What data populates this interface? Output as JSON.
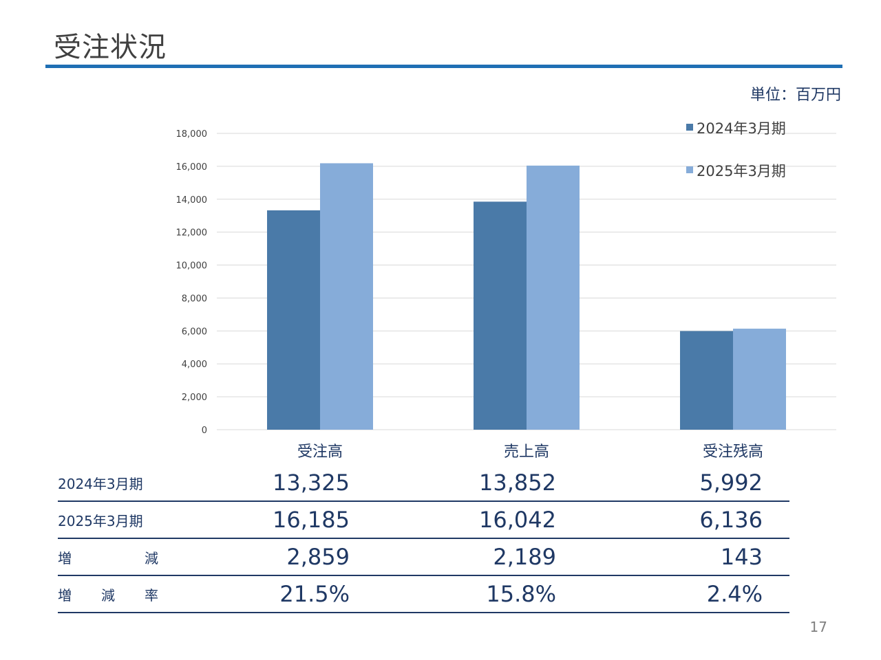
{
  "page": {
    "title": "受注状況",
    "unit": "単位：百万円",
    "page_number": "17"
  },
  "colors": {
    "series_2024": "#4a7aa8",
    "series_2025": "#86acd9",
    "rule": "#1f6fb4",
    "text_dark": "#1f3864"
  },
  "chart_data": {
    "type": "bar",
    "categories": [
      "受注高",
      "売上高",
      "受注残高"
    ],
    "series": [
      {
        "name": "2024年3月期",
        "values": [
          13325,
          13852,
          5992
        ]
      },
      {
        "name": "2025年3月期",
        "values": [
          16185,
          16042,
          6136
        ]
      }
    ],
    "ylim": [
      0,
      18000
    ],
    "yticks": [
      "0",
      "2,000",
      "4,000",
      "6,000",
      "8,000",
      "10,000",
      "12,000",
      "14,000",
      "16,000",
      "18,000"
    ],
    "ytick_values": [
      0,
      2000,
      4000,
      6000,
      8000,
      10000,
      12000,
      14000,
      16000,
      18000
    ],
    "grid": true,
    "legend_position": "top-right"
  },
  "table": {
    "rows": [
      {
        "label": "2024年3月期",
        "values": [
          "13,325",
          "13,852",
          "5,992"
        ]
      },
      {
        "label": "2025年3月期",
        "values": [
          "16,185",
          "16,042",
          "6,136"
        ]
      },
      {
        "label_parts": [
          "増",
          "減"
        ],
        "values": [
          "2,859",
          "2,189",
          "143"
        ]
      },
      {
        "label_parts": [
          "増",
          "減",
          "率"
        ],
        "values": [
          "21.5%",
          "15.8%",
          "2.4%"
        ]
      }
    ]
  }
}
